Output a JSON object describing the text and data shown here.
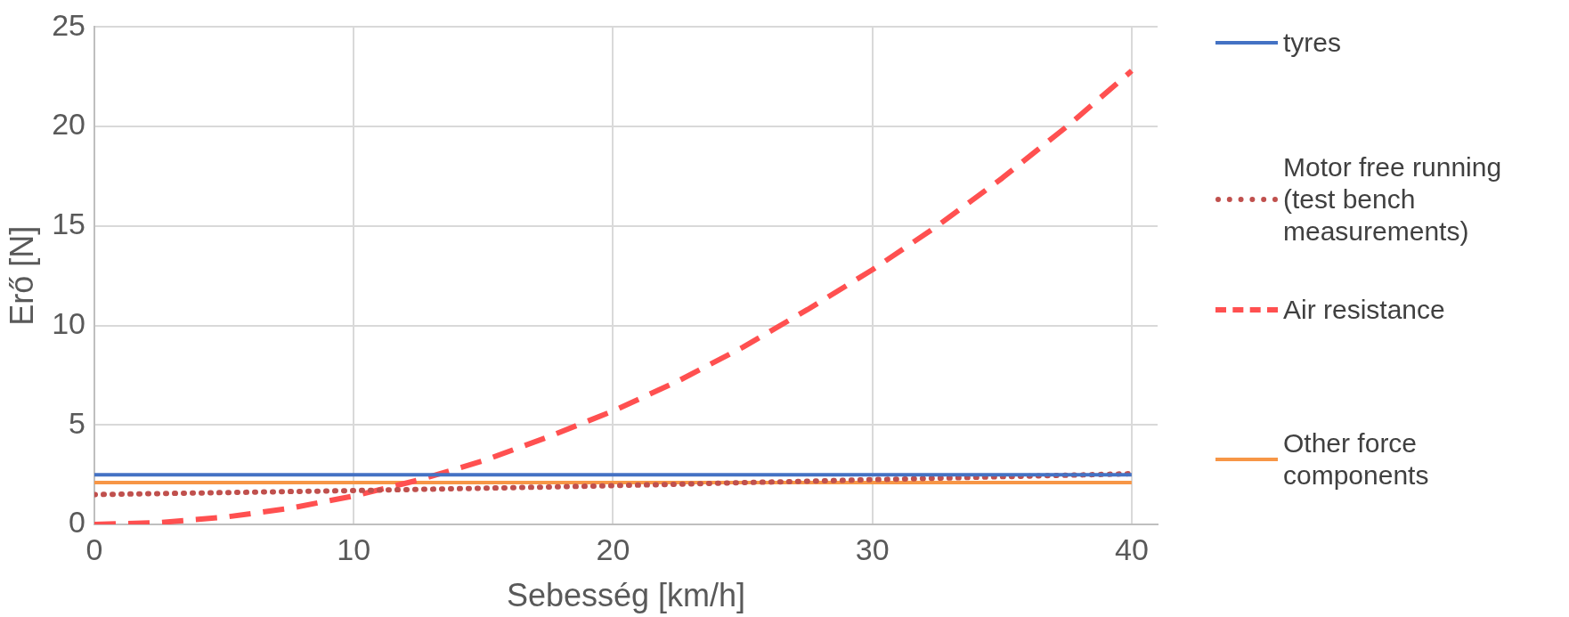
{
  "chart_data": {
    "type": "line",
    "xlabel": "Sebesség [km/h]",
    "ylabel": "Erő [N]",
    "x": [
      0,
      2.5,
      5,
      7.5,
      10,
      12.5,
      15,
      17.5,
      20,
      22.5,
      25,
      27.5,
      30,
      32.5,
      35,
      37.5,
      40
    ],
    "xlim": [
      0,
      41
    ],
    "xticks": [
      0,
      10,
      20,
      30,
      40
    ],
    "ylim": [
      0,
      25
    ],
    "yticks": [
      0,
      5,
      10,
      15,
      20,
      25
    ],
    "grid": true,
    "legend": "right",
    "marker": "none",
    "series": [
      {
        "name": "tyres",
        "color": "#4472c4",
        "line_style": "solid",
        "values": [
          2.5,
          2.5,
          2.5,
          2.5,
          2.5,
          2.5,
          2.5,
          2.5,
          2.5,
          2.5,
          2.5,
          2.5,
          2.5,
          2.5,
          2.5,
          2.5,
          2.5
        ]
      },
      {
        "name": "Motor free running (test bench measurements)",
        "color": "#c0504d",
        "line_style": "dotted",
        "values": [
          1.5,
          1.55,
          1.6,
          1.65,
          1.7,
          1.76,
          1.82,
          1.88,
          1.95,
          2.02,
          2.1,
          2.17,
          2.25,
          2.32,
          2.4,
          2.47,
          2.55
        ]
      },
      {
        "name": "Air resistance",
        "color": "#ff5050",
        "line_style": "dashed",
        "values": [
          0,
          0.09,
          0.36,
          0.8,
          1.43,
          2.23,
          3.2,
          4.4,
          5.7,
          7.2,
          8.9,
          10.8,
          12.8,
          15,
          17.4,
          20,
          22.8
        ]
      },
      {
        "name": "Other force components",
        "color": "#f79646",
        "line_style": "solid",
        "values": [
          2.1,
          2.1,
          2.1,
          2.1,
          2.1,
          2.1,
          2.1,
          2.1,
          2.1,
          2.1,
          2.1,
          2.1,
          2.1,
          2.1,
          2.1,
          2.1,
          2.1
        ]
      }
    ]
  }
}
